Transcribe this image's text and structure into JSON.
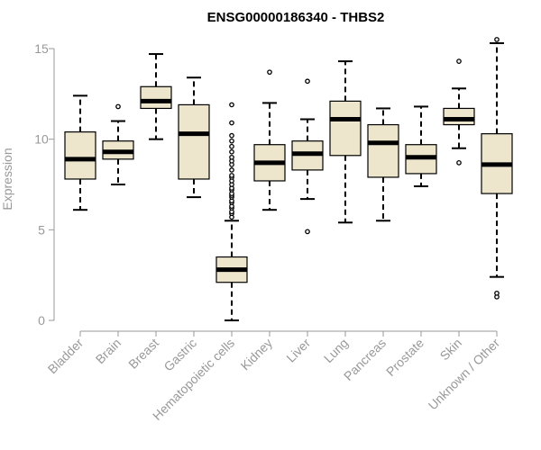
{
  "chart_data": {
    "type": "box",
    "title": "ENSG00000186340 - THBS2",
    "xlabel": "",
    "ylabel": "Expression",
    "ylim": [
      0,
      15.5
    ],
    "yticks": [
      0,
      5,
      10,
      15
    ],
    "box_color": "#ede6cc",
    "categories": [
      "Bladder",
      "Brain",
      "Breast",
      "Gastric",
      "Hematopoietic cells",
      "Kidney",
      "Liver",
      "Lung",
      "Pancreas",
      "Prostate",
      "Skin",
      "Unknown / Other"
    ],
    "boxes": [
      {
        "name": "Bladder",
        "min": 6.1,
        "q1": 7.8,
        "median": 8.9,
        "q3": 10.4,
        "max": 12.4,
        "outliers": []
      },
      {
        "name": "Brain",
        "min": 7.5,
        "q1": 8.9,
        "median": 9.3,
        "q3": 9.9,
        "max": 11.0,
        "outliers": [
          11.8
        ]
      },
      {
        "name": "Breast",
        "min": 10.0,
        "q1": 11.7,
        "median": 12.1,
        "q3": 12.9,
        "max": 14.7,
        "outliers": []
      },
      {
        "name": "Gastric",
        "min": 6.8,
        "q1": 7.8,
        "median": 10.3,
        "q3": 11.9,
        "max": 13.4,
        "outliers": []
      },
      {
        "name": "Hematopoietic cells",
        "min": 0.0,
        "q1": 2.1,
        "median": 2.8,
        "q3": 3.5,
        "max": 5.5,
        "outliers": [
          5.7,
          5.9,
          6.0,
          6.2,
          6.3,
          6.5,
          6.6,
          6.8,
          6.9,
          7.0,
          7.2,
          7.3,
          7.5,
          7.7,
          7.9,
          8.0,
          8.3,
          8.6,
          8.8,
          9.0,
          9.3,
          9.6,
          9.9,
          10.2,
          10.9,
          11.9
        ]
      },
      {
        "name": "Kidney",
        "min": 6.1,
        "q1": 7.7,
        "median": 8.7,
        "q3": 9.7,
        "max": 12.0,
        "outliers": [
          13.7
        ]
      },
      {
        "name": "Liver",
        "min": 6.7,
        "q1": 8.3,
        "median": 9.2,
        "q3": 9.9,
        "max": 11.1,
        "outliers": [
          4.9,
          13.2
        ]
      },
      {
        "name": "Lung",
        "min": 5.4,
        "q1": 9.1,
        "median": 11.1,
        "q3": 12.1,
        "max": 14.3,
        "outliers": []
      },
      {
        "name": "Pancreas",
        "min": 5.5,
        "q1": 7.9,
        "median": 9.8,
        "q3": 10.8,
        "max": 11.7,
        "outliers": []
      },
      {
        "name": "Prostate",
        "min": 7.4,
        "q1": 8.1,
        "median": 9.0,
        "q3": 9.7,
        "max": 11.8,
        "outliers": []
      },
      {
        "name": "Skin",
        "min": 9.5,
        "q1": 10.8,
        "median": 11.1,
        "q3": 11.7,
        "max": 12.8,
        "outliers": [
          8.7,
          14.3
        ]
      },
      {
        "name": "Unknown / Other",
        "min": 2.4,
        "q1": 7.0,
        "median": 8.6,
        "q3": 10.3,
        "max": 15.3,
        "outliers": [
          1.3,
          1.5,
          15.5
        ]
      }
    ]
  }
}
